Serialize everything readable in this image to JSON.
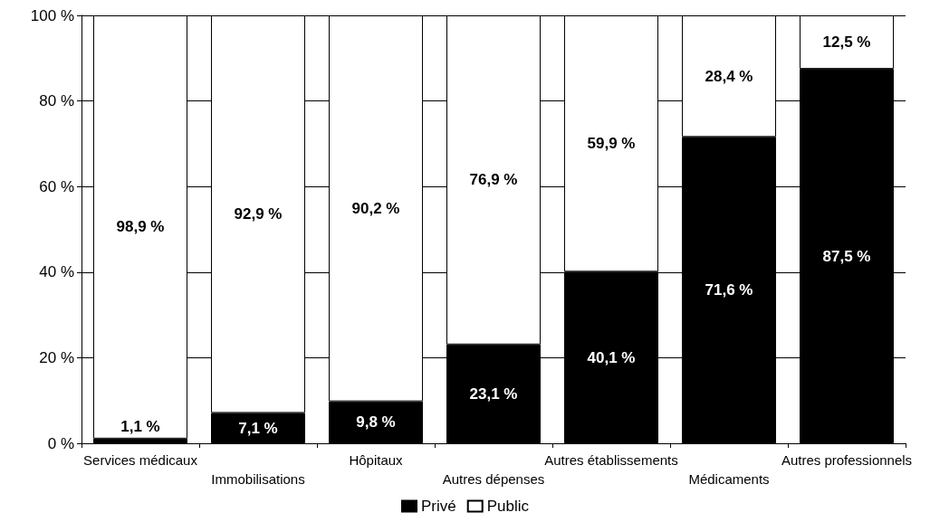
{
  "chart_data": {
    "type": "bar",
    "stacked": true,
    "categories": [
      "Services médicaux",
      "Immobilisations",
      "Hôpitaux",
      "Autres dépenses",
      "Autres établissements",
      "Médicaments",
      "Autres professionnels"
    ],
    "series": [
      {
        "name": "Privé",
        "color": "#000000",
        "values": [
          1.1,
          7.1,
          9.8,
          23.1,
          40.1,
          71.6,
          87.5
        ],
        "value_labels": [
          "1,1 %",
          "7,1 %",
          "9,8 %",
          "23,1 %",
          "40,1 %",
          "71,6 %",
          "87,5 %"
        ]
      },
      {
        "name": "Public",
        "color": "#ffffff",
        "values": [
          98.9,
          92.9,
          90.2,
          76.9,
          59.9,
          28.4,
          12.5
        ],
        "value_labels": [
          "98,9 %",
          "92,9 %",
          "90,2 %",
          "76,9 %",
          "59,9 %",
          "28,4 %",
          "12,5 %"
        ]
      }
    ],
    "ylim": [
      0,
      100
    ],
    "yticks": [
      {
        "value": 0,
        "label": "0 %"
      },
      {
        "value": 20,
        "label": "20 %"
      },
      {
        "value": 40,
        "label": "40 %"
      },
      {
        "value": 60,
        "label": "60 %"
      },
      {
        "value": 80,
        "label": "80 %"
      },
      {
        "value": 100,
        "label": "100 %"
      }
    ],
    "grid": "y",
    "legend": "bottom"
  }
}
